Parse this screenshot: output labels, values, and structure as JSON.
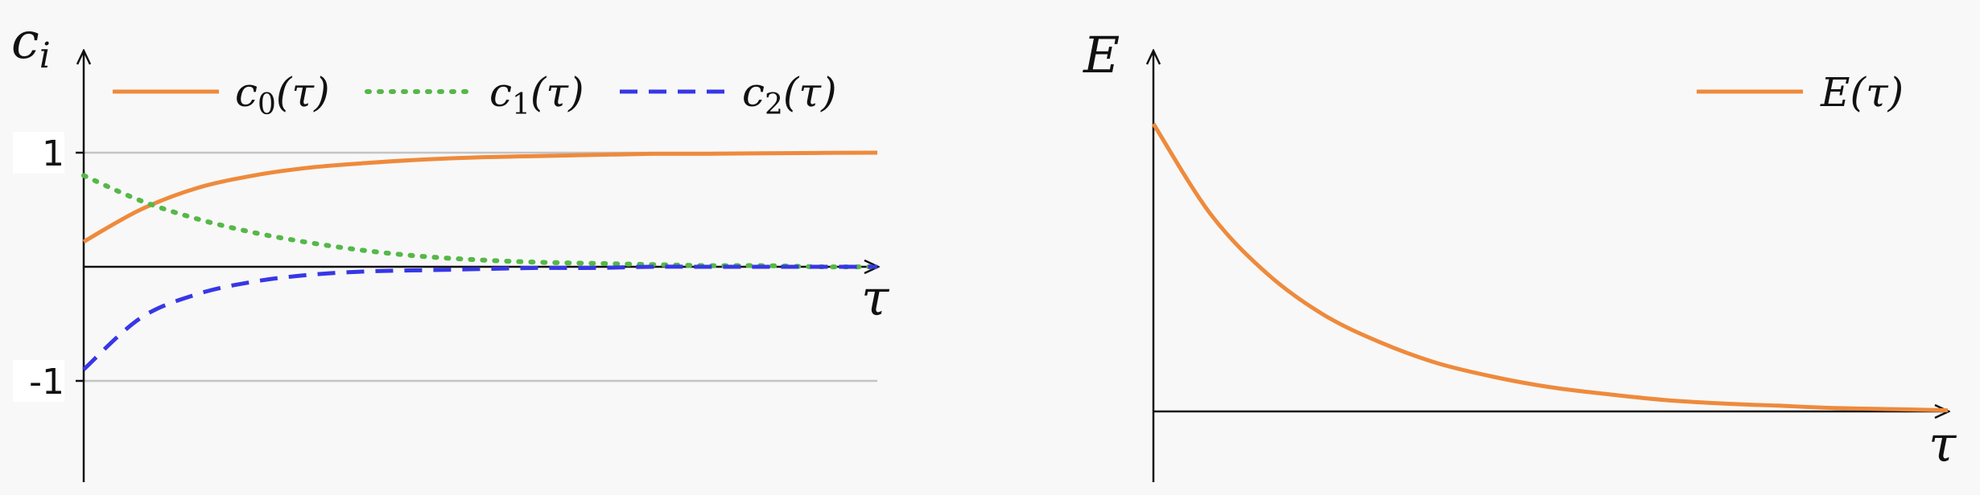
{
  "chart_data": [
    {
      "type": "line",
      "ylabel_main": "c",
      "ylabel_sub": "i",
      "xlabel": "τ",
      "xlim": [
        0,
        7
      ],
      "ylim": [
        -1.9,
        1.8
      ],
      "yticks": [
        {
          "value": 1,
          "label": "1"
        },
        {
          "value": -1,
          "label": "-1"
        }
      ],
      "grid_y": [
        1,
        -1
      ],
      "legend": "top",
      "colors": {
        "c0": "#ee8a3c",
        "c1": "#55b848",
        "c2": "#3737e6"
      },
      "series": [
        {
          "name_main": "c",
          "name_sub": "0",
          "name_suffix": "(τ)",
          "style": "solid",
          "color": "#ee8a3c",
          "x": [
            0,
            0.5,
            1,
            1.5,
            2,
            2.5,
            3,
            3.5,
            4,
            4.5,
            5,
            5.5,
            6,
            6.5,
            7
          ],
          "values": [
            0.22,
            0.5,
            0.69,
            0.8,
            0.87,
            0.91,
            0.94,
            0.96,
            0.97,
            0.98,
            0.99,
            0.99,
            0.995,
            0.998,
            1.0
          ]
        },
        {
          "name_main": "c",
          "name_sub": "1",
          "name_suffix": "(τ)",
          "style": "dotted",
          "color": "#55b848",
          "x": [
            0,
            0.5,
            1,
            1.5,
            2,
            2.5,
            3,
            3.5,
            4,
            4.5,
            5,
            5.5,
            6,
            6.5,
            7
          ],
          "values": [
            0.8,
            0.58,
            0.42,
            0.3,
            0.21,
            0.14,
            0.09,
            0.06,
            0.04,
            0.03,
            0.02,
            0.01,
            0.01,
            0.0,
            0.0
          ]
        },
        {
          "name_main": "c",
          "name_sub": "2",
          "name_suffix": "(τ)",
          "style": "dashed",
          "color": "#3737e6",
          "x": [
            0,
            0.5,
            1,
            1.5,
            2,
            2.5,
            3,
            3.5,
            4,
            4.5,
            5,
            5.5,
            6,
            6.5,
            7
          ],
          "values": [
            -0.9,
            -0.45,
            -0.24,
            -0.13,
            -0.07,
            -0.04,
            -0.03,
            -0.02,
            -0.01,
            -0.01,
            0.0,
            0.0,
            0.0,
            0.0,
            0.0
          ]
        }
      ]
    },
    {
      "type": "line",
      "ylabel": "E",
      "xlabel": "τ",
      "xlim": [
        0,
        7
      ],
      "ylim": [
        -0.35,
        1.55
      ],
      "legend": "top-right",
      "series": [
        {
          "name_main": "E",
          "name_suffix": "(τ)",
          "style": "solid",
          "color": "#ee8a3c",
          "x": [
            0,
            0.5,
            1,
            1.5,
            2,
            2.5,
            3,
            3.5,
            4,
            4.5,
            5,
            5.5,
            6,
            6.5,
            7
          ],
          "values": [
            1.25,
            0.86,
            0.6,
            0.42,
            0.3,
            0.21,
            0.15,
            0.105,
            0.075,
            0.05,
            0.035,
            0.025,
            0.015,
            0.01,
            0.005
          ]
        }
      ]
    }
  ]
}
